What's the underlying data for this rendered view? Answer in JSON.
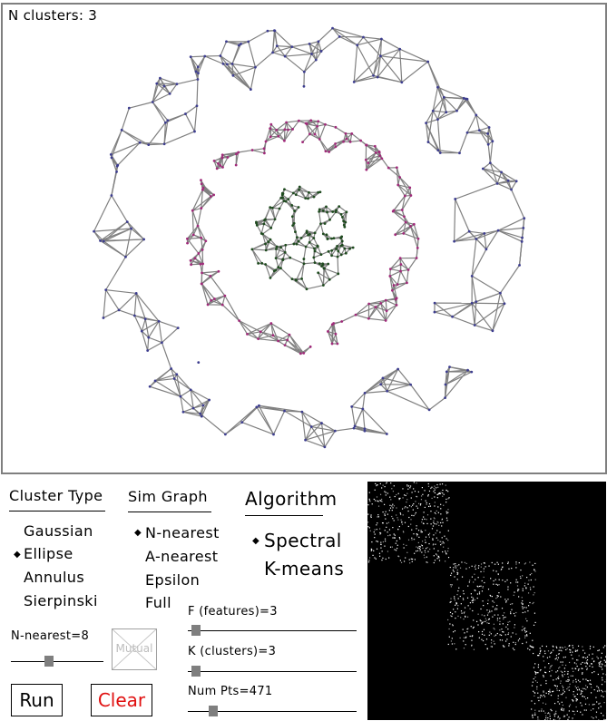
{
  "status": {
    "clusters_label": "N clusters: 3"
  },
  "cluster_type": {
    "heading": "Cluster Type",
    "options": [
      "Gaussian",
      "Ellipse",
      "Annulus",
      "Sierpinski"
    ],
    "selected": "Ellipse"
  },
  "sim_graph": {
    "heading": "Sim Graph",
    "options": [
      "N-nearest",
      "A-nearest",
      "Epsilon",
      "Full"
    ],
    "selected": "N-nearest"
  },
  "algorithm": {
    "heading": "Algorithm",
    "options": [
      "Spectral",
      "K-means"
    ],
    "selected": "Spectral"
  },
  "nearest_slider": {
    "label": "N-nearest=8",
    "value": 8
  },
  "mutual_button": {
    "label": "Mutual",
    "enabled": false
  },
  "features_slider": {
    "label": "F (features)=3",
    "value": 3
  },
  "clusters_slider": {
    "label": "K (clusters)=3",
    "value": 3
  },
  "points_slider": {
    "label": "Num Pts=471",
    "value": 471
  },
  "run_button": {
    "label": "Run"
  },
  "clear_button": {
    "label": "Clear"
  },
  "colors": {
    "edge": "#808080",
    "cluster_outer": "#3d3d8f",
    "cluster_middle": "#a02a7a",
    "cluster_inner": "#1e4a1e",
    "clear_text": "#e01010",
    "disabled": "#bdbdbd"
  }
}
